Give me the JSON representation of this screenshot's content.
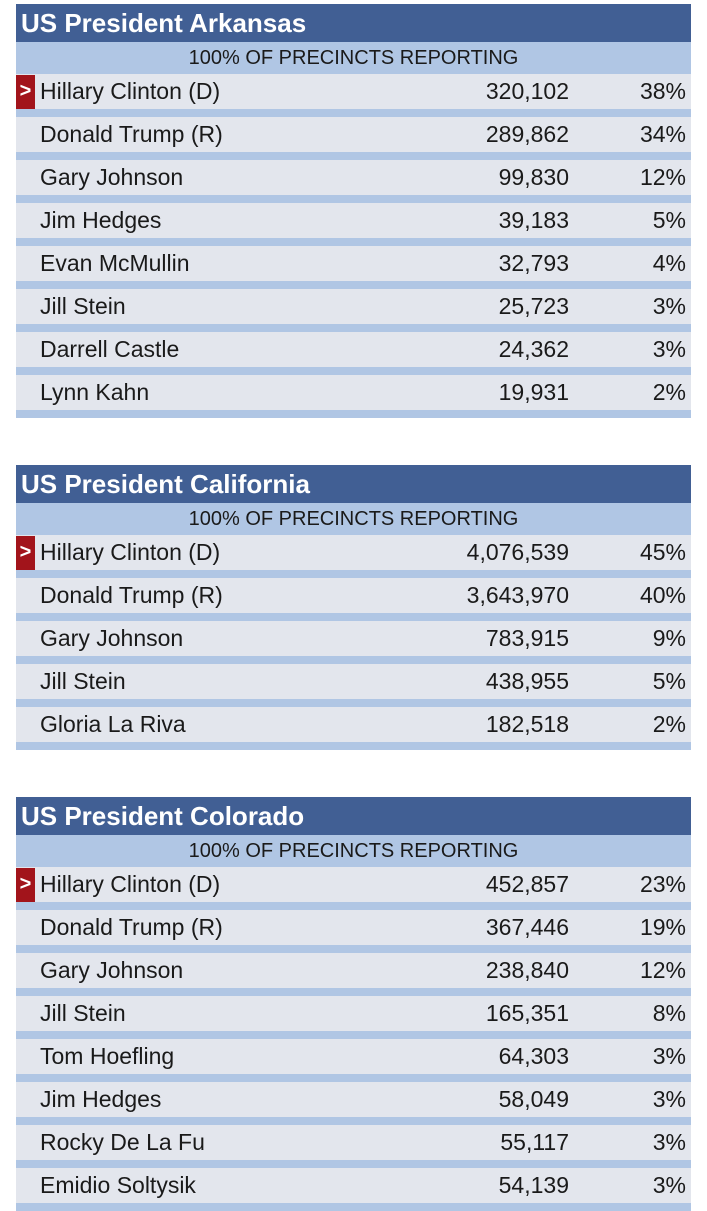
{
  "races": [
    {
      "title": "US President Arkansas",
      "reporting": "100% OF PRECINCTS REPORTING",
      "candidates": [
        {
          "name": "Hillary Clinton (D)",
          "votes": "320,102",
          "pct": "38%",
          "winner": true
        },
        {
          "name": "Donald Trump (R)",
          "votes": "289,862",
          "pct": "34%",
          "winner": false
        },
        {
          "name": "Gary Johnson",
          "votes": "99,830",
          "pct": "12%",
          "winner": false
        },
        {
          "name": "Jim Hedges",
          "votes": "39,183",
          "pct": "5%",
          "winner": false
        },
        {
          "name": "Evan McMullin",
          "votes": "32,793",
          "pct": "4%",
          "winner": false
        },
        {
          "name": "Jill Stein",
          "votes": "25,723",
          "pct": "3%",
          "winner": false
        },
        {
          "name": "Darrell Castle",
          "votes": "24,362",
          "pct": "3%",
          "winner": false
        },
        {
          "name": "Lynn Kahn",
          "votes": "19,931",
          "pct": "2%",
          "winner": false
        }
      ]
    },
    {
      "title": "US President California",
      "reporting": "100% OF PRECINCTS REPORTING",
      "candidates": [
        {
          "name": "Hillary Clinton (D)",
          "votes": "4,076,539",
          "pct": "45%",
          "winner": true
        },
        {
          "name": "Donald Trump (R)",
          "votes": "3,643,970",
          "pct": "40%",
          "winner": false
        },
        {
          "name": "Gary Johnson",
          "votes": "783,915",
          "pct": "9%",
          "winner": false
        },
        {
          "name": "Jill Stein",
          "votes": "438,955",
          "pct": "5%",
          "winner": false
        },
        {
          "name": "Gloria La Riva",
          "votes": "182,518",
          "pct": "2%",
          "winner": false
        }
      ]
    },
    {
      "title": "US President Colorado",
      "reporting": "100% OF PRECINCTS REPORTING",
      "candidates": [
        {
          "name": "Hillary Clinton (D)",
          "votes": "452,857",
          "pct": "23%",
          "winner": true
        },
        {
          "name": "Donald Trump (R)",
          "votes": "367,446",
          "pct": "19%",
          "winner": false
        },
        {
          "name": "Gary Johnson",
          "votes": "238,840",
          "pct": "12%",
          "winner": false
        },
        {
          "name": "Jill Stein",
          "votes": "165,351",
          "pct": "8%",
          "winner": false
        },
        {
          "name": "Tom Hoefling",
          "votes": "64,303",
          "pct": "3%",
          "winner": false
        },
        {
          "name": "Jim Hedges",
          "votes": "58,049",
          "pct": "3%",
          "winner": false
        },
        {
          "name": "Rocky De La Fu",
          "votes": "55,117",
          "pct": "3%",
          "winner": false
        },
        {
          "name": "Emidio Soltysik",
          "votes": "54,139",
          "pct": "3%",
          "winner": false
        }
      ]
    }
  ],
  "winner_marker": ">",
  "colors": {
    "header": "#415f94",
    "subheader": "#b0c6e4",
    "row": "#e3e6ed",
    "winner": "#a2141b"
  }
}
